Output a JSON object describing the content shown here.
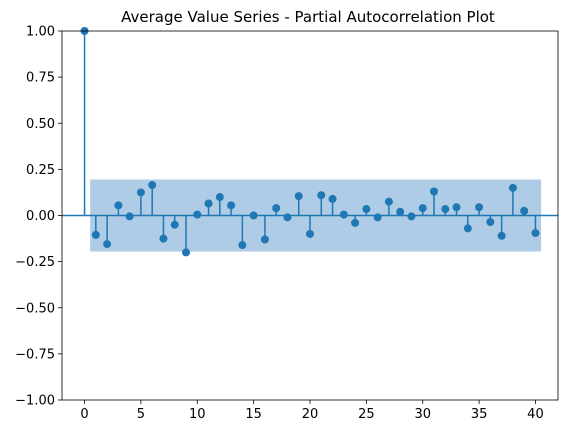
{
  "chart_data": {
    "type": "stem",
    "title": "Average Value Series - Partial Autocorrelation Plot",
    "xlabel": "",
    "ylabel": "",
    "xlim": [
      -2,
      42
    ],
    "ylim": [
      -1.0,
      1.0
    ],
    "xticks": [
      0,
      5,
      10,
      15,
      20,
      25,
      30,
      35,
      40
    ],
    "yticks": [
      -1.0,
      -0.75,
      -0.5,
      -0.25,
      0.0,
      0.25,
      0.5,
      0.75,
      1.0
    ],
    "xtick_labels": [
      "0",
      "5",
      "10",
      "15",
      "20",
      "25",
      "30",
      "35",
      "40"
    ],
    "ytick_labels": [
      "−1.00",
      "−0.75",
      "−0.50",
      "−0.25",
      "0.00",
      "0.25",
      "0.50",
      "0.75",
      "1.00"
    ],
    "grid": false,
    "confidence_band": {
      "x_range": [
        0.5,
        40.5
      ],
      "lower": -0.195,
      "upper": 0.195,
      "color": "#aecce6"
    },
    "marker_color": "#1f77b4",
    "lags": [
      0,
      1,
      2,
      3,
      4,
      5,
      6,
      7,
      8,
      9,
      10,
      11,
      12,
      13,
      14,
      15,
      16,
      17,
      18,
      19,
      20,
      21,
      22,
      23,
      24,
      25,
      26,
      27,
      28,
      29,
      30,
      31,
      32,
      33,
      34,
      35,
      36,
      37,
      38,
      39,
      40
    ],
    "values": [
      1.0,
      -0.105,
      -0.155,
      0.055,
      -0.005,
      0.125,
      0.165,
      -0.125,
      -0.05,
      -0.2,
      0.005,
      0.065,
      0.1,
      0.055,
      -0.16,
      0.0,
      -0.13,
      0.04,
      -0.01,
      0.105,
      -0.1,
      0.11,
      0.09,
      0.005,
      -0.04,
      0.035,
      -0.01,
      0.075,
      0.02,
      -0.005,
      0.04,
      0.13,
      0.035,
      0.045,
      -0.07,
      0.045,
      -0.035,
      -0.11,
      0.15,
      0.025,
      -0.095
    ]
  }
}
